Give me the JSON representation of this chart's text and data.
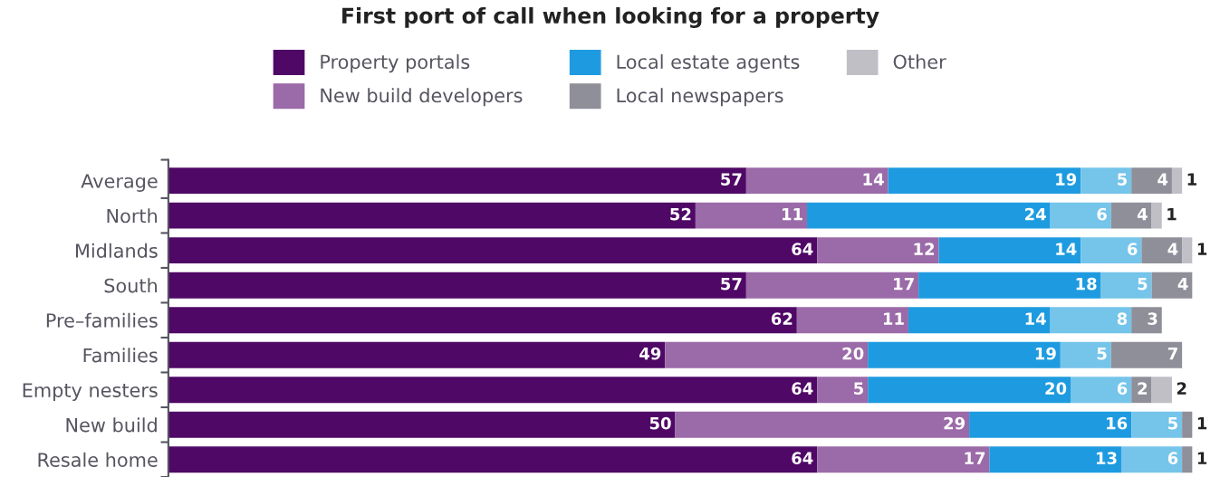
{
  "chart_data": {
    "type": "bar",
    "orientation": "horizontal",
    "stacked": true,
    "data_labels": true,
    "legend": "top",
    "grid": false,
    "title": "First port of call when looking for a property",
    "categories": [
      "Average",
      "North",
      "Midlands",
      "South",
      "Pre–families",
      "Families",
      "Empty nesters",
      "New build",
      "Resale home"
    ],
    "series": [
      {
        "name": "Property portals",
        "color": "#4f0866",
        "values": [
          57,
          52,
          64,
          57,
          62,
          49,
          64,
          50,
          64
        ]
      },
      {
        "name": "New build developers",
        "color": "#9b6aa8",
        "values": [
          14,
          11,
          12,
          17,
          11,
          20,
          5,
          29,
          17
        ]
      },
      {
        "name": "Local estate agents",
        "color": "#1e9be0",
        "values": [
          19,
          24,
          14,
          18,
          14,
          19,
          20,
          16,
          13
        ]
      },
      {
        "color": "#75c4ea",
        "values": [
          5,
          6,
          6,
          5,
          8,
          5,
          6,
          5,
          6
        ]
      },
      {
        "name": "Local newspapers",
        "color": "#8e8f99",
        "values": [
          4,
          4,
          4,
          4,
          3,
          7,
          2,
          1,
          1
        ]
      },
      {
        "name": "Other",
        "color": "#c0bfc6",
        "values": [
          1,
          1,
          1,
          null,
          null,
          null,
          2,
          null,
          null
        ]
      }
    ]
  }
}
